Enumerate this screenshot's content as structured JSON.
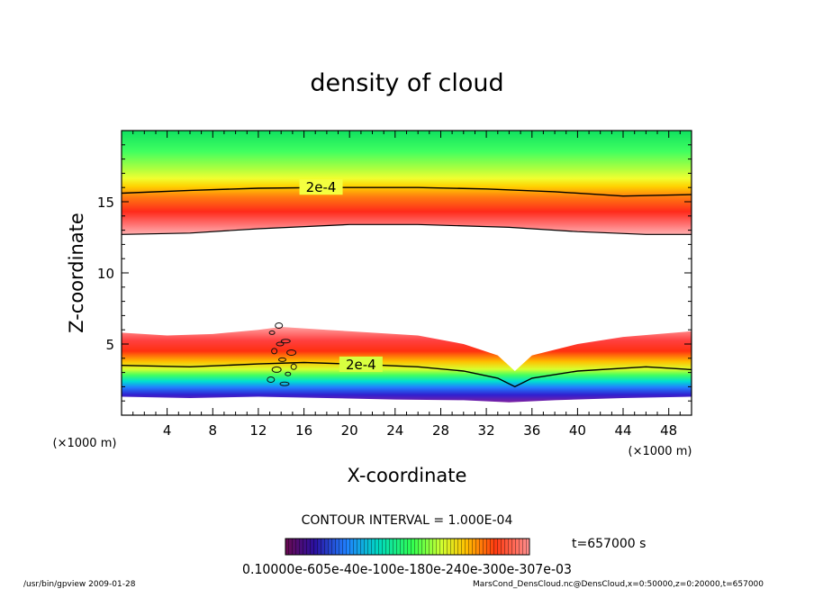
{
  "chart_data": {
    "type": "heatmap",
    "title": "density of cloud",
    "xlabel": "X-coordinate",
    "ylabel": "Z-coordinate",
    "x_unit": "(×1000 m)",
    "z_unit": "(×1000 m)",
    "xlim": [
      0,
      50
    ],
    "ylim": [
      0,
      20
    ],
    "x_ticks": [
      4,
      8,
      12,
      16,
      20,
      24,
      28,
      32,
      36,
      40,
      44,
      48
    ],
    "y_ticks": [
      5,
      10,
      15
    ],
    "contour_label": "2e-4",
    "contour_interval": "CONTOUR INTERVAL = 1.000E-04",
    "time_label": "t=657000 s",
    "colorbar_label": "0.10000e-605e-40e-100e-180e-240e-300e-307e-03",
    "upper_layer": {
      "bottom": [
        [
          0,
          12.7
        ],
        [
          6,
          12.8
        ],
        [
          12,
          13.1
        ],
        [
          20,
          13.4
        ],
        [
          26,
          13.4
        ],
        [
          34,
          13.2
        ],
        [
          40,
          12.9
        ],
        [
          46,
          12.7
        ],
        [
          50,
          12.7
        ]
      ],
      "contour": [
        [
          0,
          15.6
        ],
        [
          6,
          15.8
        ],
        [
          12,
          15.95
        ],
        [
          18,
          16.0
        ],
        [
          26,
          16.0
        ],
        [
          32,
          15.9
        ],
        [
          38,
          15.7
        ],
        [
          44,
          15.4
        ],
        [
          50,
          15.5
        ]
      ],
      "peak": [
        [
          0,
          13.7
        ],
        [
          8,
          13.8
        ],
        [
          16,
          14.1
        ],
        [
          24,
          14.3
        ],
        [
          32,
          14.1
        ],
        [
          40,
          13.8
        ],
        [
          50,
          13.7
        ]
      ]
    },
    "lower_layer": {
      "top": [
        [
          0,
          5.8
        ],
        [
          4,
          5.6
        ],
        [
          8,
          5.7
        ],
        [
          12,
          6.0
        ],
        [
          14,
          6.2
        ],
        [
          18,
          6.0
        ],
        [
          22,
          5.8
        ],
        [
          26,
          5.6
        ],
        [
          30,
          5.0
        ],
        [
          33,
          4.2
        ],
        [
          34.5,
          3.1
        ],
        [
          36,
          4.2
        ],
        [
          40,
          5.0
        ],
        [
          44,
          5.5
        ],
        [
          50,
          5.9
        ]
      ],
      "contour": [
        [
          0,
          3.5
        ],
        [
          6,
          3.4
        ],
        [
          12,
          3.6
        ],
        [
          16,
          3.7
        ],
        [
          20,
          3.6
        ],
        [
          26,
          3.4
        ],
        [
          30,
          3.1
        ],
        [
          33,
          2.6
        ],
        [
          34.5,
          2.0
        ],
        [
          36,
          2.6
        ],
        [
          40,
          3.1
        ],
        [
          46,
          3.4
        ],
        [
          50,
          3.2
        ]
      ],
      "base": [
        [
          0,
          1.3
        ],
        [
          6,
          1.2
        ],
        [
          12,
          1.3
        ],
        [
          18,
          1.2
        ],
        [
          24,
          1.1
        ],
        [
          30,
          1.05
        ],
        [
          34,
          0.9
        ],
        [
          38,
          1.05
        ],
        [
          44,
          1.2
        ],
        [
          50,
          1.3
        ]
      ]
    }
  },
  "footer": {
    "left": "/usr/bin/gpview  2009-01-28",
    "right": "MarsCond_DensCloud.nc@DensCloud,x=0:50000,z=0:20000,t=657000"
  }
}
